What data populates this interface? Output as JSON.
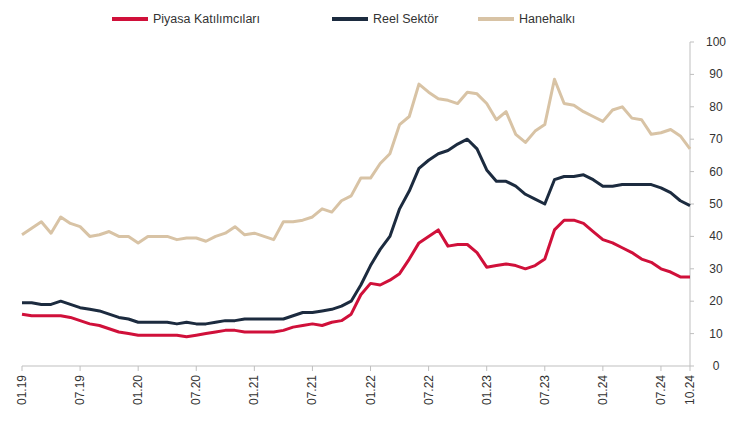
{
  "chart_data": {
    "type": "line",
    "categories": [
      "01.19",
      null,
      null,
      null,
      null,
      null,
      "07.19",
      null,
      null,
      null,
      null,
      null,
      "01.20",
      null,
      null,
      null,
      null,
      null,
      "07.20",
      null,
      null,
      null,
      null,
      null,
      "01.21",
      null,
      null,
      null,
      null,
      null,
      "07.21",
      null,
      null,
      null,
      null,
      null,
      "01.22",
      null,
      null,
      null,
      null,
      null,
      "07.22",
      null,
      null,
      null,
      null,
      null,
      "01.23",
      null,
      null,
      null,
      null,
      null,
      "07.23",
      null,
      null,
      null,
      null,
      null,
      "01.24",
      null,
      null,
      null,
      null,
      null,
      "07.24",
      null,
      null,
      "10.24"
    ],
    "series": [
      {
        "name": "Piyasa Katılımcıları",
        "color": "#d0103a",
        "values": [
          16,
          15.5,
          15.5,
          15.5,
          15.5,
          15,
          14,
          13,
          12.5,
          11.5,
          10.5,
          10,
          9.5,
          9.5,
          9.5,
          9.5,
          9.5,
          9,
          9.5,
          10,
          10.5,
          11,
          11,
          10.5,
          10.5,
          10.5,
          10.5,
          11,
          12,
          12.5,
          13,
          12.5,
          13.5,
          14,
          16,
          22,
          25.5,
          25,
          26.5,
          28.5,
          33,
          38,
          40,
          42,
          37,
          37.5,
          37.5,
          35,
          30.5,
          31,
          31.5,
          31,
          30,
          31,
          33,
          42,
          45,
          45,
          44,
          41.5,
          39,
          38,
          36.5,
          35,
          33,
          32,
          30,
          29,
          27.5,
          27.5
        ]
      },
      {
        "name": "Reel Sektör",
        "color": "#1c2b3f",
        "values": [
          19.5,
          19.5,
          19,
          19,
          20,
          19,
          18,
          17.5,
          17,
          16,
          15,
          14.5,
          13.5,
          13.5,
          13.5,
          13.5,
          13,
          13.5,
          13,
          13,
          13.5,
          14,
          14,
          14.5,
          14.5,
          14.5,
          14.5,
          14.5,
          15.5,
          16.5,
          16.5,
          17,
          17.5,
          18.5,
          20,
          25,
          31,
          36,
          40,
          48.5,
          54,
          61,
          63.5,
          65.5,
          66.5,
          68.5,
          70,
          67,
          60.5,
          57,
          57,
          55.5,
          53,
          51.5,
          50,
          57.5,
          58.5,
          58.5,
          59,
          57.5,
          55.5,
          55.5,
          56,
          56,
          56,
          56,
          55,
          53.5,
          51,
          49.5
        ]
      },
      {
        "name": "Hanehalkı",
        "color": "#d8c3a5",
        "values": [
          40.5,
          42.5,
          44.5,
          41,
          46,
          44,
          43,
          40,
          40.5,
          41.5,
          40,
          40,
          38,
          40,
          40,
          40,
          39,
          39.5,
          39.5,
          38.5,
          40,
          41,
          43,
          40.5,
          41,
          40,
          39,
          44.5,
          44.5,
          45,
          46,
          48.5,
          47.5,
          51,
          52.5,
          58,
          58,
          62.5,
          65.5,
          74.5,
          77,
          87,
          84.5,
          82.5,
          82,
          81,
          84.5,
          84,
          81,
          76,
          78.5,
          71.5,
          69,
          72.5,
          74.5,
          88.5,
          81,
          80.5,
          78.5,
          77,
          75.5,
          79,
          80,
          76.5,
          76,
          71.5,
          72,
          73,
          71,
          67
        ]
      }
    ],
    "ylim": [
      0,
      100
    ],
    "yticks": [
      0,
      10,
      20,
      30,
      40,
      50,
      60,
      70,
      80,
      90,
      100
    ],
    "grid": false,
    "legend": "top"
  }
}
